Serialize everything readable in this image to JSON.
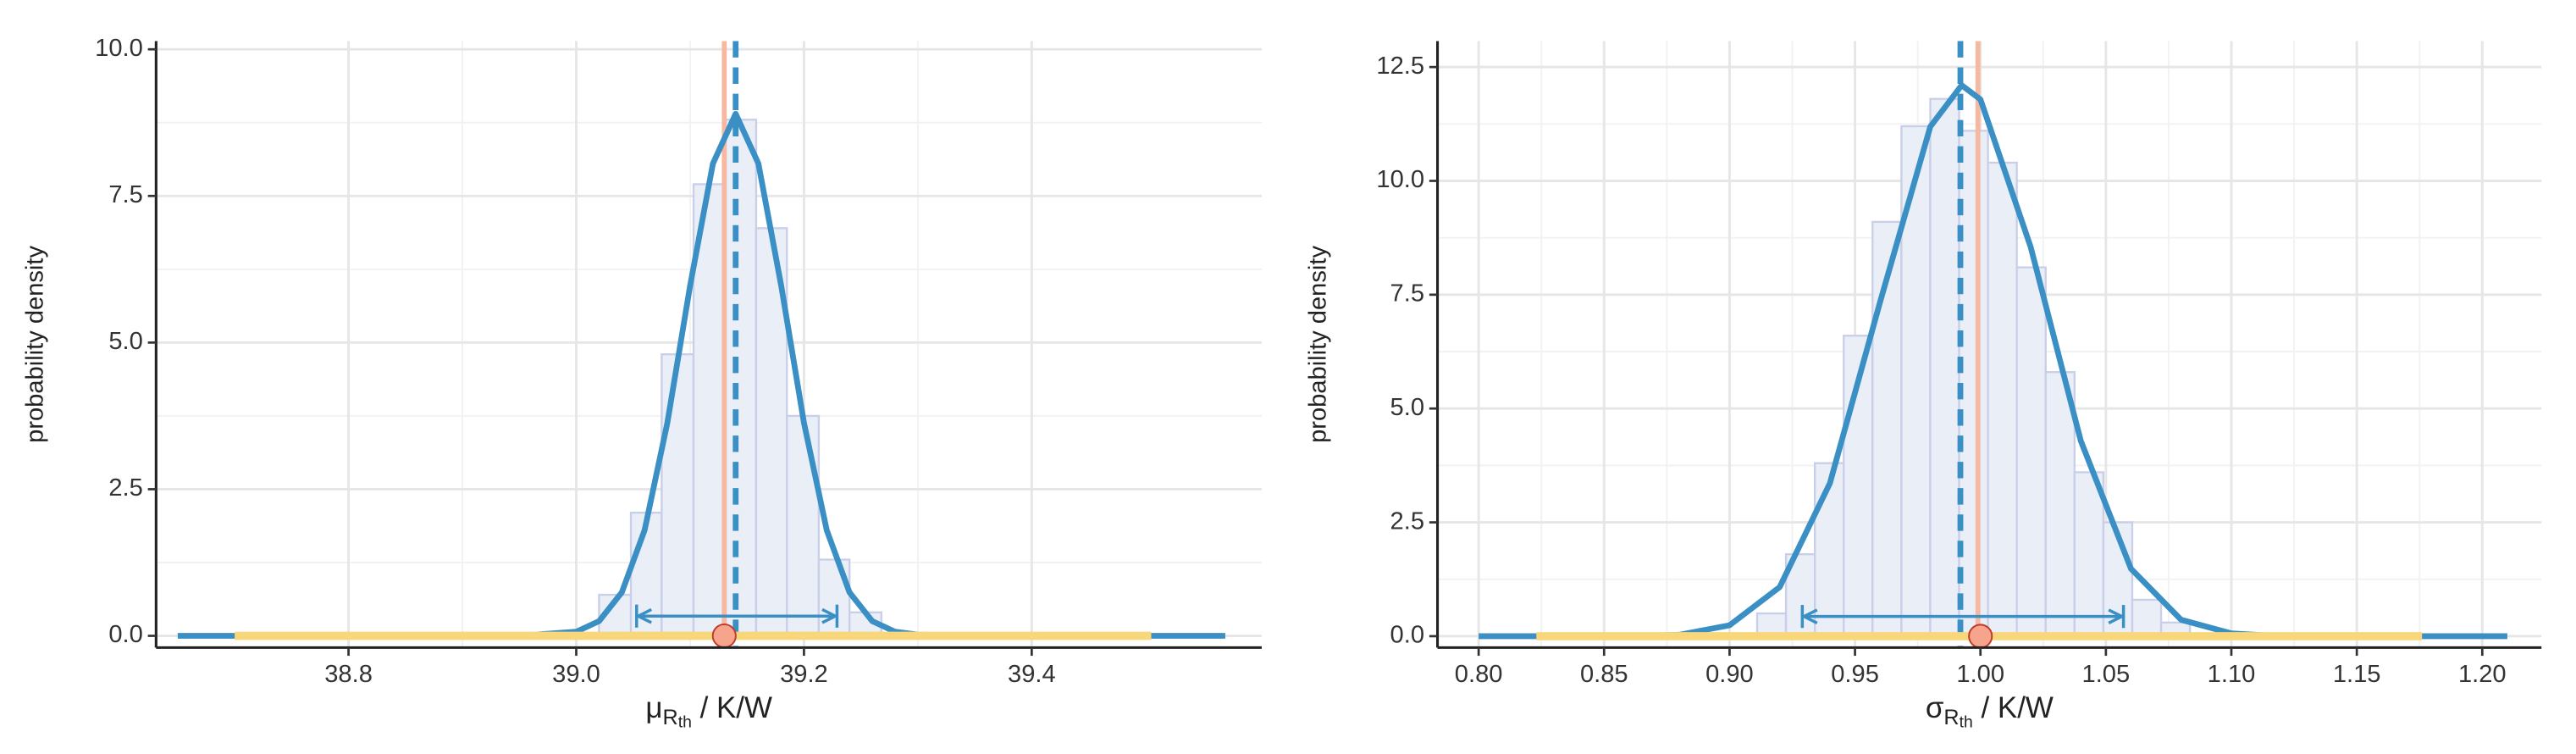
{
  "chart_data": [
    {
      "type": "histogram",
      "x_label": {
        "symbol": "μ",
        "sub": "R",
        "subsub": "th",
        "unit": " / K/W"
      },
      "y_label": "probability density",
      "bins": [
        39.02,
        39.048,
        39.075,
        39.103,
        39.13,
        39.158,
        39.185,
        39.213,
        39.24,
        39.268
      ],
      "values": [
        0.7,
        2.1,
        4.8,
        7.7,
        8.8,
        6.95,
        3.75,
        1.3,
        0.4
      ],
      "bar_color": "#e9eef7",
      "bar_edge": "#c9cfe8",
      "density": {
        "x": [
          38.65,
          38.9,
          38.95,
          39.0,
          39.02,
          39.04,
          39.06,
          39.08,
          39.1,
          39.12,
          39.14,
          39.16,
          39.18,
          39.2,
          39.22,
          39.24,
          39.26,
          39.28,
          39.3,
          39.35,
          39.57
        ],
        "values": [
          0,
          0,
          0,
          0.07,
          0.25,
          0.74,
          1.8,
          3.63,
          5.97,
          8.05,
          8.9,
          8.05,
          5.97,
          3.63,
          1.8,
          0.74,
          0.25,
          0.07,
          0.02,
          0,
          0
        ],
        "color": "#3a8fc4"
      },
      "reference_line": {
        "x": 39.13,
        "color": "#f7b8a2"
      },
      "estimate_line": {
        "x": 39.14,
        "color": "#3a8fc4"
      },
      "interval": [
        39.053,
        39.229
      ],
      "prior_range": {
        "from": 38.7,
        "to": 39.505,
        "color": "#f8d77b"
      },
      "true_point": {
        "x": 39.13,
        "y": 0,
        "color": "#f7a48c"
      },
      "xlim": [
        38.631,
        39.602
      ],
      "ylim": [
        -0.2,
        10.14
      ],
      "xticks": [
        38.8,
        {
          "value": 39,
          "label": "39.0"
        },
        39.2,
        39.4
      ],
      "yticks": [
        {
          "value": 0,
          "label": "0.0"
        },
        2.5,
        {
          "value": 5,
          "label": "5.0"
        },
        7.5,
        {
          "value": 10,
          "label": "10.0"
        }
      ],
      "grid": true
    },
    {
      "type": "histogram",
      "x_label": {
        "symbol": "σ",
        "sub": "R",
        "subsub": "th",
        "unit": " / K/W"
      },
      "y_label": "probability density",
      "bins": [
        0.911,
        0.9225,
        0.934,
        0.9455,
        0.957,
        0.9685,
        0.98,
        0.9915,
        1.003,
        1.0145,
        1.026,
        1.0375,
        1.049,
        1.0605,
        1.072,
        1.0835
      ],
      "values": [
        0.5,
        1.8,
        3.8,
        6.6,
        9.1,
        11.2,
        11.8,
        11.1,
        10.4,
        8.1,
        5.8,
        3.6,
        2.5,
        0.8,
        0.3
      ],
      "bar_color": "#e9eef7",
      "bar_edge": "#c9cfe8",
      "density": {
        "x": [
          0.8,
          0.86,
          0.88,
          0.9,
          0.92,
          0.94,
          0.96,
          0.98,
          0.9925,
          1.0,
          1.02,
          1.04,
          1.06,
          1.08,
          1.1,
          1.12,
          1.21
        ],
        "values": [
          0,
          0,
          0.03,
          0.24,
          1.08,
          3.36,
          7.34,
          11.19,
          12.1,
          11.79,
          8.55,
          4.29,
          1.48,
          0.36,
          0.06,
          0,
          0
        ],
        "color": "#3a8fc4"
      },
      "reference_line": {
        "x": 0.999,
        "color": "#f7b8a2"
      },
      "estimate_line": {
        "x": 0.992,
        "color": "#3a8fc4"
      },
      "interval": [
        0.929,
        1.057
      ],
      "prior_range": {
        "from": 0.823,
        "to": 1.176,
        "color": "#f8d77b"
      },
      "true_point": {
        "x": 1.0,
        "y": 0,
        "color": "#f7a48c"
      },
      "xlim": [
        0.7836,
        1.2236
      ],
      "ylim": [
        -0.25,
        13.07
      ],
      "xticks": [
        {
          "value": 0.8,
          "label": "0.80"
        },
        0.85,
        {
          "value": 0.9,
          "label": "0.90"
        },
        0.95,
        {
          "value": 1,
          "label": "1.00"
        },
        1.05,
        {
          "value": 1.1,
          "label": "1.10"
        },
        1.15,
        {
          "value": 1.2,
          "label": "1.20"
        }
      ],
      "yticks": [
        {
          "value": 0,
          "label": "0.0"
        },
        2.5,
        {
          "value": 5,
          "label": "5.0"
        },
        7.5,
        {
          "value": 10,
          "label": "10.0"
        },
        12.5
      ],
      "grid": true
    }
  ]
}
